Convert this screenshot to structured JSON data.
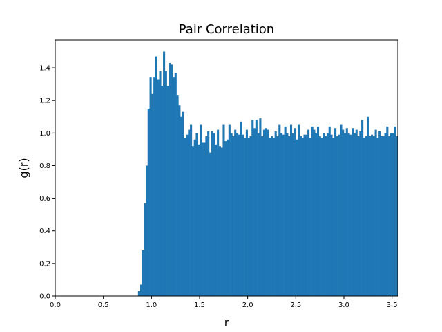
{
  "chart_data": {
    "type": "bar",
    "title": "Pair Correlation",
    "xlabel": "r",
    "ylabel": "g(r)",
    "xlim": [
      0.0,
      3.56
    ],
    "ylim": [
      0.0,
      1.57
    ],
    "xticks": [
      "0.0",
      "0.5",
      "1.0",
      "1.5",
      "2.0",
      "2.5",
      "3.0",
      "3.5"
    ],
    "yticks": [
      "0.0",
      "0.2",
      "0.4",
      "0.6",
      "0.8",
      "1.0",
      "1.2",
      "1.4"
    ],
    "grid": false,
    "bar_color": "#1f77b4",
    "bin_width": 0.02,
    "x_start": 0.86,
    "values": [
      0.03,
      0.07,
      0.28,
      0.57,
      0.8,
      1.15,
      1.34,
      1.24,
      1.34,
      1.47,
      1.33,
      1.38,
      1.29,
      1.5,
      1.38,
      1.29,
      1.43,
      1.42,
      1.34,
      1.37,
      1.23,
      1.17,
      1.1,
      1.13,
      0.97,
      0.99,
      1.02,
      1.05,
      0.92,
      0.96,
      1.0,
      0.93,
      1.05,
      0.94,
      0.94,
      0.98,
      1.01,
      0.88,
      1.01,
      1.0,
      0.93,
      1.02,
      0.92,
      0.91,
      1.05,
      0.95,
      0.96,
      1.05,
      1.0,
      0.98,
      1.02,
      1.0,
      0.99,
      1.07,
      0.99,
      0.97,
      1.02,
      0.97,
      0.98,
      1.08,
      1.03,
      1.08,
      1.0,
      1.09,
      0.98,
      1.02,
      1.03,
      1.02,
      0.97,
      0.98,
      0.97,
      1.01,
      0.98,
      1.05,
      1.0,
      0.99,
      1.04,
      1.0,
      0.98,
      1.05,
      1.0,
      1.03,
      0.96,
      1.05,
      0.98,
      0.97,
      0.99,
      0.99,
      1.02,
      0.97,
      1.04,
      1.02,
      1.0,
      1.04,
      0.98,
      0.97,
      1.0,
      0.98,
      1.0,
      1.04,
      0.99,
      0.97,
      1.03,
      0.98,
      0.99,
      1.05,
      1.02,
      1.0,
      1.03,
      1.0,
      0.99,
      1.03,
      1.0,
      1.02,
      0.98,
      1.01,
      1.08,
      0.97,
      0.98,
      1.1,
      0.98,
      0.99,
      0.98,
      1.02,
      0.97,
      1.01,
      0.98,
      0.98,
      1.0,
      1.04,
      0.98,
      1.0,
      1.0,
      1.04,
      0.98,
      1.01,
      0.98,
      1.04,
      0.98,
      0.97,
      1.0,
      1.07,
      0.98,
      0.98,
      1.09,
      0.98,
      0.99,
      1.05,
      1.0,
      1.0,
      1.03,
      1.0,
      0.99,
      1.06,
      0.98,
      1.01,
      0.98,
      1.06,
      0.98,
      1.02,
      0.99,
      1.03,
      0.98,
      1.0,
      0.98,
      1.06,
      1.0,
      1.0,
      0.99,
      1.04,
      0.98,
      1.0,
      0.99,
      1.02,
      0.98,
      1.0,
      1.0,
      1.04,
      0.99,
      1.0,
      1.0,
      0.98,
      1.02,
      0.99,
      1.01,
      1.0,
      0.99,
      1.04,
      0.98,
      1.01,
      1.0,
      0.98,
      1.01,
      0.99,
      1.0,
      1.03
    ]
  }
}
